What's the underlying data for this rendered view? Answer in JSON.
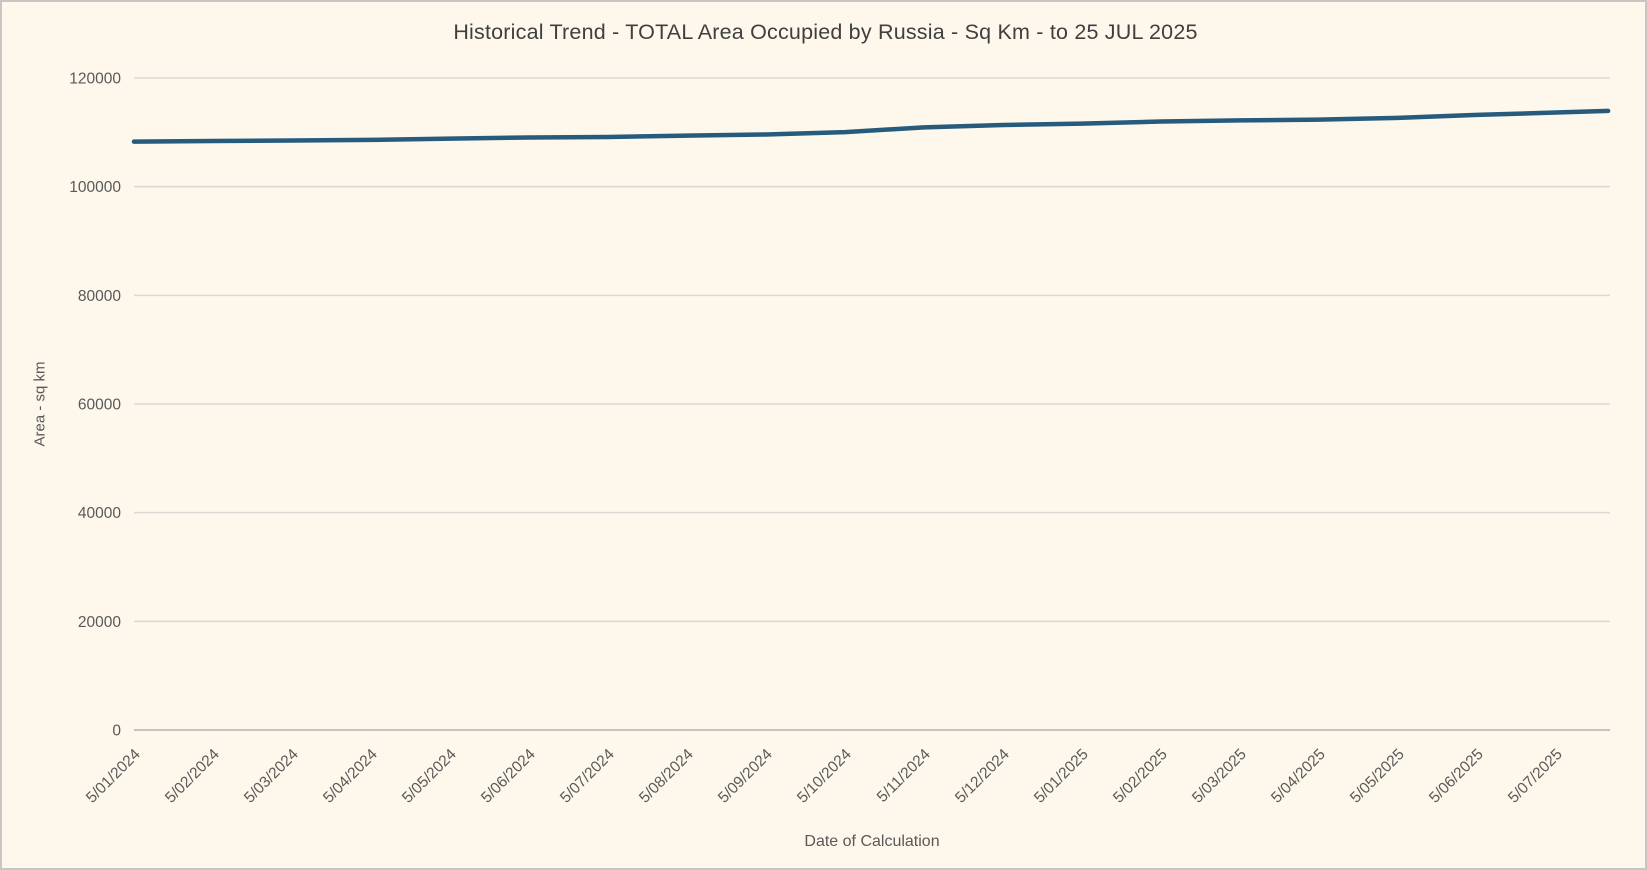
{
  "page": {
    "background_color": "#fdf8eb",
    "border_color": "#c8c6c2"
  },
  "chart_data": {
    "type": "line",
    "title": "Historical Trend - TOTAL Area Occupied by Russia - Sq Km - to 25 JUL 2025",
    "xlabel": "Date of Calculation",
    "ylabel": "Area - sq km",
    "ylim": [
      0,
      120000
    ],
    "ytick_step": 20000,
    "ytick_labels": [
      "0",
      "20000",
      "40000",
      "60000",
      "80000",
      "100000",
      "120000"
    ],
    "grid": true,
    "legend_position": "none",
    "line_color": "#275b7d",
    "grid_color": "#dbd9d3",
    "axis_line_color": "#c6c4c0",
    "text_color": "#595959",
    "categories": [
      "5/01/2024",
      "5/02/2024",
      "5/03/2024",
      "5/04/2024",
      "5/05/2024",
      "5/06/2024",
      "5/07/2024",
      "5/08/2024",
      "5/09/2024",
      "5/10/2024",
      "5/11/2024",
      "5/12/2024",
      "5/01/2025",
      "5/02/2025",
      "5/03/2025",
      "5/04/2025",
      "5/05/2025",
      "5/06/2025",
      "5/07/2025"
    ],
    "series": [
      {
        "points": [
          {
            "x": 0,
            "date": "5/01/2024",
            "value": 108300
          },
          {
            "x": 1,
            "date": "5/02/2024",
            "value": 108400
          },
          {
            "x": 2,
            "date": "5/03/2024",
            "value": 108500
          },
          {
            "x": 3,
            "date": "5/04/2024",
            "value": 108600
          },
          {
            "x": 4,
            "date": "5/05/2024",
            "value": 108850
          },
          {
            "x": 5,
            "date": "5/06/2024",
            "value": 109050
          },
          {
            "x": 6,
            "date": "5/07/2024",
            "value": 109150
          },
          {
            "x": 7,
            "date": "5/08/2024",
            "value": 109400
          },
          {
            "x": 8,
            "date": "5/09/2024",
            "value": 109600
          },
          {
            "x": 9,
            "date": "5/10/2024",
            "value": 110050
          },
          {
            "x": 10,
            "date": "5/11/2024",
            "value": 110900
          },
          {
            "x": 11,
            "date": "5/12/2024",
            "value": 111350
          },
          {
            "x": 12,
            "date": "5/01/2025",
            "value": 111600
          },
          {
            "x": 13,
            "date": "5/02/2025",
            "value": 112000
          },
          {
            "x": 14,
            "date": "5/03/2025",
            "value": 112200
          },
          {
            "x": 15,
            "date": "5/04/2025",
            "value": 112350
          },
          {
            "x": 16,
            "date": "5/05/2025",
            "value": 112650
          },
          {
            "x": 17,
            "date": "5/06/2025",
            "value": 113200
          },
          {
            "x": 18,
            "date": "5/07/2025",
            "value": 113650
          },
          {
            "x": 18.66,
            "date": "25 JUL 2025",
            "value": 113950
          }
        ]
      }
    ]
  }
}
